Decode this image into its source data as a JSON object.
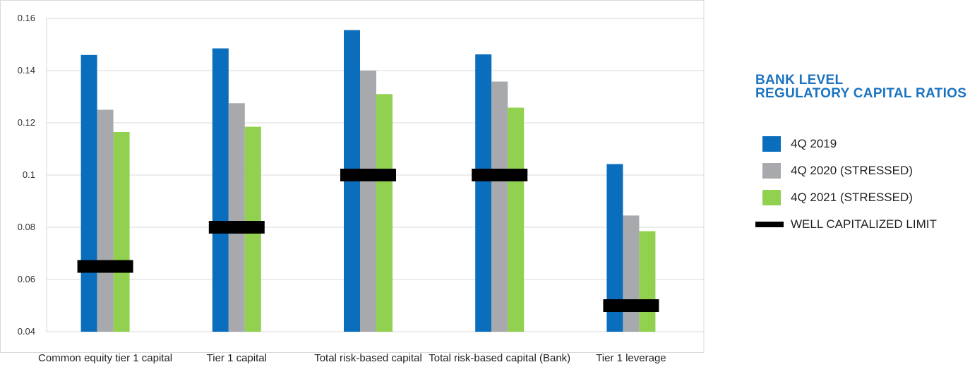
{
  "chart_data": {
    "type": "bar",
    "title": "",
    "xlabel": "",
    "ylabel": "",
    "ylim": [
      0.04,
      0.16
    ],
    "yticks": [
      "0.04",
      "0.06",
      "0.08",
      "0.1",
      "0.12",
      "0.14",
      "0.16"
    ],
    "grid": true,
    "categories": [
      "Common equity tier 1 capital",
      "Tier 1 capital",
      "Total risk-based capital",
      "Total risk-based capital (Bank)",
      "Tier 1 leverage"
    ],
    "series": [
      {
        "name": "4Q 2019",
        "color": "#0a6ebd",
        "values": [
          0.146,
          0.1485,
          0.1555,
          0.1462,
          0.1042
        ]
      },
      {
        "name": "4Q 2020 (STRESSED)",
        "color": "#a7a9ac",
        "values": [
          0.125,
          0.1275,
          0.14,
          0.1358,
          0.0845
        ]
      },
      {
        "name": "4Q 2021 (STRESSED)",
        "color": "#92d050",
        "values": [
          0.1165,
          0.1185,
          0.131,
          0.1258,
          0.0785
        ]
      }
    ],
    "limit": {
      "name": "WELL CAPITALIZED LIMIT",
      "color": "#000000",
      "values": [
        0.065,
        0.08,
        0.1,
        0.1,
        0.05
      ]
    },
    "legend": {
      "placement": "right",
      "title_lines": [
        "BANK LEVEL",
        "REGULATORY CAPITAL RATIOS"
      ],
      "title_color": "#1a73c0"
    }
  }
}
